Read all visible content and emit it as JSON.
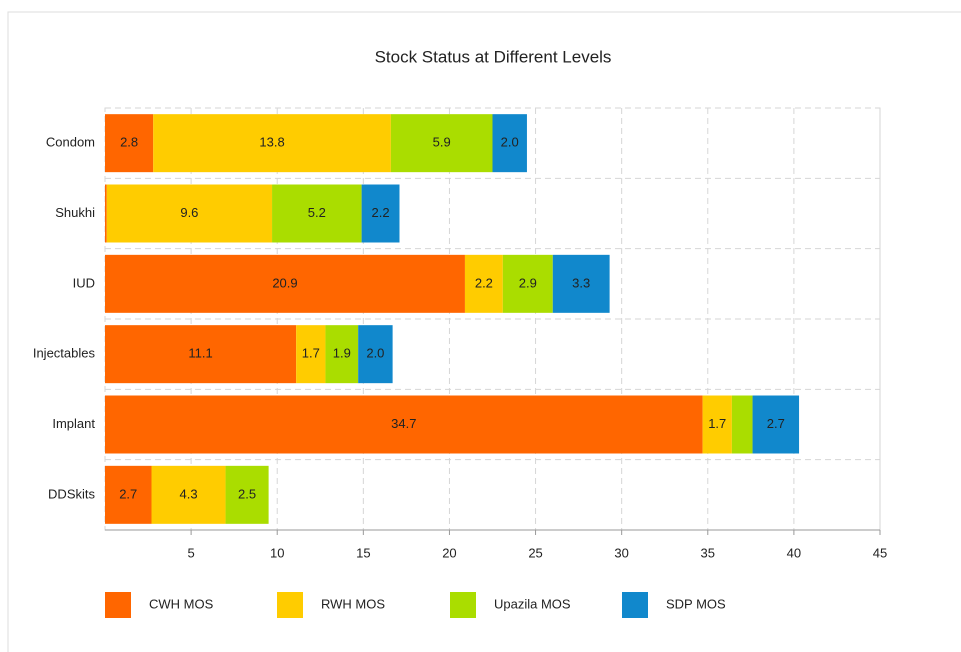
{
  "chart_data": {
    "type": "stacked-bar",
    "orientation": "horizontal",
    "title": "Stock Status at Different Levels",
    "categories": [
      "Condom",
      "Shukhi",
      "IUD",
      "Injectables",
      "Implant",
      "DDSkits"
    ],
    "series": [
      {
        "name": "CWH MOS",
        "color": "#ff6600",
        "values": [
          2.8,
          0.1,
          20.9,
          11.1,
          34.7,
          2.7
        ],
        "value_labels": [
          "2.8",
          null,
          "20.9",
          "11.1",
          "34.7",
          "2.7"
        ]
      },
      {
        "name": "RWH MOS",
        "color": "#ffcc00",
        "values": [
          13.8,
          9.6,
          2.2,
          1.7,
          1.7,
          4.3
        ],
        "value_labels": [
          "13.8",
          "9.6",
          "2.2",
          "1.7",
          "1.7",
          "4.3"
        ]
      },
      {
        "name": "Upazila MOS",
        "color": "#aadd00",
        "values": [
          5.9,
          5.2,
          2.9,
          1.9,
          1.2,
          2.5
        ],
        "value_labels": [
          "5.9",
          "5.2",
          "2.9",
          "1.9",
          null,
          "2.5"
        ]
      },
      {
        "name": "SDP MOS",
        "color": "#1188cc",
        "values": [
          2.0,
          2.2,
          3.3,
          2.0,
          2.7,
          null
        ],
        "value_labels": [
          "2.0",
          "2.2",
          "3.3",
          "2.0",
          "2.7",
          null
        ]
      }
    ],
    "xlim": [
      0,
      45
    ],
    "xticks": [
      5,
      10,
      15,
      20,
      25,
      30,
      35,
      40,
      45
    ],
    "grid": true,
    "legend": "bottom"
  }
}
